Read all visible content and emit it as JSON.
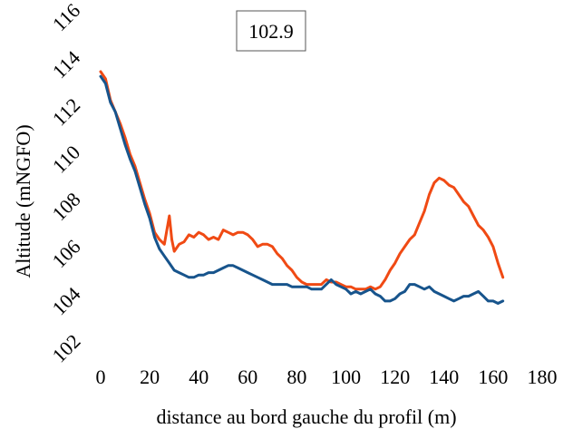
{
  "chart_data": {
    "type": "line",
    "title": "",
    "annotation": "102.9",
    "xlabel": "distance au bord gauche du profil (m)",
    "ylabel": "Altitude (mNGFO)",
    "xlim": [
      0,
      180
    ],
    "ylim": [
      102,
      116
    ],
    "x_ticks": [
      "0",
      "20",
      "40",
      "60",
      "80",
      "100",
      "120",
      "140",
      "160",
      "180"
    ],
    "y_ticks": [
      "102",
      "104",
      "106",
      "108",
      "110",
      "112",
      "114",
      "116"
    ],
    "grid": false,
    "legend": "none",
    "series": [
      {
        "color": "#f04a14",
        "points": [
          [
            0,
            113.7
          ],
          [
            2,
            113.4
          ],
          [
            4,
            112.5
          ],
          [
            6,
            112.0
          ],
          [
            8,
            111.5
          ],
          [
            10,
            110.9
          ],
          [
            12,
            110.2
          ],
          [
            14,
            109.7
          ],
          [
            16,
            109.0
          ],
          [
            18,
            108.3
          ],
          [
            20,
            107.7
          ],
          [
            22,
            106.9
          ],
          [
            24,
            106.6
          ],
          [
            26,
            106.4
          ],
          [
            28,
            107.6
          ],
          [
            29,
            106.6
          ],
          [
            30,
            106.1
          ],
          [
            32,
            106.4
          ],
          [
            34,
            106.5
          ],
          [
            36,
            106.8
          ],
          [
            38,
            106.7
          ],
          [
            40,
            106.9
          ],
          [
            42,
            106.8
          ],
          [
            44,
            106.6
          ],
          [
            46,
            106.7
          ],
          [
            48,
            106.6
          ],
          [
            50,
            107.0
          ],
          [
            52,
            106.9
          ],
          [
            54,
            106.8
          ],
          [
            56,
            106.9
          ],
          [
            58,
            106.9
          ],
          [
            60,
            106.8
          ],
          [
            62,
            106.6
          ],
          [
            64,
            106.3
          ],
          [
            66,
            106.4
          ],
          [
            68,
            106.4
          ],
          [
            70,
            106.3
          ],
          [
            72,
            106.0
          ],
          [
            74,
            105.8
          ],
          [
            76,
            105.5
          ],
          [
            78,
            105.3
          ],
          [
            80,
            105.0
          ],
          [
            82,
            104.8
          ],
          [
            84,
            104.7
          ],
          [
            86,
            104.7
          ],
          [
            88,
            104.7
          ],
          [
            90,
            104.7
          ],
          [
            92,
            104.9
          ],
          [
            94,
            104.8
          ],
          [
            96,
            104.8
          ],
          [
            98,
            104.7
          ],
          [
            100,
            104.6
          ],
          [
            102,
            104.6
          ],
          [
            104,
            104.5
          ],
          [
            106,
            104.5
          ],
          [
            108,
            104.5
          ],
          [
            110,
            104.6
          ],
          [
            112,
            104.5
          ],
          [
            114,
            104.6
          ],
          [
            116,
            104.9
          ],
          [
            118,
            105.3
          ],
          [
            120,
            105.6
          ],
          [
            122,
            106.0
          ],
          [
            124,
            106.3
          ],
          [
            126,
            106.6
          ],
          [
            128,
            106.8
          ],
          [
            130,
            107.3
          ],
          [
            132,
            107.8
          ],
          [
            134,
            108.5
          ],
          [
            136,
            109.0
          ],
          [
            138,
            109.2
          ],
          [
            140,
            109.1
          ],
          [
            142,
            108.9
          ],
          [
            144,
            108.8
          ],
          [
            146,
            108.5
          ],
          [
            148,
            108.2
          ],
          [
            150,
            108.0
          ],
          [
            152,
            107.6
          ],
          [
            154,
            107.2
          ],
          [
            156,
            107.0
          ],
          [
            158,
            106.7
          ],
          [
            160,
            106.3
          ],
          [
            162,
            105.6
          ],
          [
            164,
            105.0
          ]
        ]
      },
      {
        "color": "#17548c",
        "points": [
          [
            0,
            113.5
          ],
          [
            2,
            113.2
          ],
          [
            4,
            112.4
          ],
          [
            6,
            112.0
          ],
          [
            8,
            111.3
          ],
          [
            10,
            110.6
          ],
          [
            12,
            110.0
          ],
          [
            14,
            109.5
          ],
          [
            16,
            108.8
          ],
          [
            18,
            108.1
          ],
          [
            20,
            107.5
          ],
          [
            22,
            106.7
          ],
          [
            24,
            106.2
          ],
          [
            26,
            105.9
          ],
          [
            28,
            105.6
          ],
          [
            30,
            105.3
          ],
          [
            32,
            105.2
          ],
          [
            34,
            105.1
          ],
          [
            36,
            105.0
          ],
          [
            38,
            105.0
          ],
          [
            40,
            105.1
          ],
          [
            42,
            105.1
          ],
          [
            44,
            105.2
          ],
          [
            46,
            105.2
          ],
          [
            48,
            105.3
          ],
          [
            50,
            105.4
          ],
          [
            52,
            105.5
          ],
          [
            54,
            105.5
          ],
          [
            56,
            105.4
          ],
          [
            58,
            105.3
          ],
          [
            60,
            105.2
          ],
          [
            62,
            105.1
          ],
          [
            64,
            105.0
          ],
          [
            66,
            104.9
          ],
          [
            68,
            104.8
          ],
          [
            70,
            104.7
          ],
          [
            72,
            104.7
          ],
          [
            74,
            104.7
          ],
          [
            76,
            104.7
          ],
          [
            78,
            104.6
          ],
          [
            80,
            104.6
          ],
          [
            82,
            104.6
          ],
          [
            84,
            104.6
          ],
          [
            86,
            104.5
          ],
          [
            88,
            104.5
          ],
          [
            90,
            104.5
          ],
          [
            92,
            104.7
          ],
          [
            94,
            104.9
          ],
          [
            96,
            104.7
          ],
          [
            98,
            104.6
          ],
          [
            100,
            104.5
          ],
          [
            102,
            104.3
          ],
          [
            104,
            104.4
          ],
          [
            106,
            104.3
          ],
          [
            108,
            104.4
          ],
          [
            110,
            104.5
          ],
          [
            112,
            104.3
          ],
          [
            114,
            104.2
          ],
          [
            116,
            104.0
          ],
          [
            118,
            104.0
          ],
          [
            120,
            104.1
          ],
          [
            122,
            104.3
          ],
          [
            124,
            104.4
          ],
          [
            126,
            104.7
          ],
          [
            128,
            104.7
          ],
          [
            130,
            104.6
          ],
          [
            132,
            104.5
          ],
          [
            134,
            104.6
          ],
          [
            136,
            104.4
          ],
          [
            138,
            104.3
          ],
          [
            140,
            104.2
          ],
          [
            142,
            104.1
          ],
          [
            144,
            104.0
          ],
          [
            146,
            104.1
          ],
          [
            148,
            104.2
          ],
          [
            150,
            104.2
          ],
          [
            152,
            104.3
          ],
          [
            154,
            104.4
          ],
          [
            156,
            104.2
          ],
          [
            158,
            104.0
          ],
          [
            160,
            104.0
          ],
          [
            162,
            103.9
          ],
          [
            164,
            104.0
          ]
        ]
      }
    ]
  }
}
